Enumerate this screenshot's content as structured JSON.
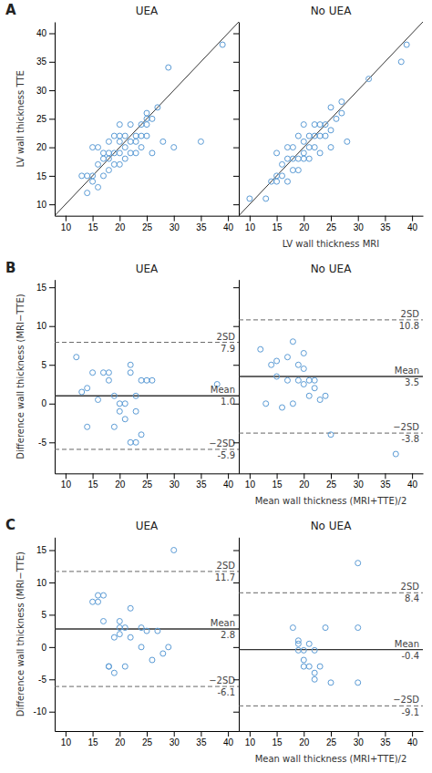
{
  "chart_data": [
    {
      "type": "scatter",
      "title": "UEA",
      "ylabel": "LV wall thickness TTE",
      "annotations": [
        {
          "text": "A"
        }
      ],
      "color": "#5B9BD5",
      "xlim": [
        8,
        42
      ],
      "ylim": [
        8,
        42
      ],
      "xticks": [
        10,
        15,
        20,
        25,
        30,
        35,
        40
      ],
      "yticks": [
        10,
        15,
        20,
        25,
        30,
        35,
        40
      ],
      "x": [
        13,
        14,
        14,
        15,
        15,
        15,
        16,
        16,
        16,
        17,
        17,
        17,
        18,
        18,
        18,
        18,
        19,
        19,
        19,
        20,
        20,
        20,
        20,
        20,
        21,
        21,
        21,
        22,
        22,
        22,
        23,
        23,
        23,
        24,
        24,
        24,
        25,
        25,
        25,
        25,
        26,
        26,
        27,
        28,
        29,
        30,
        35,
        39
      ],
      "values": [
        15,
        12,
        15,
        15,
        14,
        20,
        13,
        17,
        20,
        15,
        18,
        19,
        16,
        18,
        19,
        21,
        17,
        19,
        22,
        17,
        19,
        21,
        22,
        24,
        18,
        20,
        22,
        19,
        21,
        24,
        19,
        21,
        22,
        20,
        22,
        24,
        22,
        24,
        25,
        26,
        25,
        19,
        27,
        21,
        34,
        20,
        21,
        38
      ],
      "reference_lines": [
        {
          "x": [
            8,
            42
          ],
          "y": [
            8,
            42
          ],
          "line_style": "solid"
        }
      ]
    },
    {
      "type": "scatter",
      "title": "No UEA",
      "xlabel": "LV wall thickness MRI",
      "tick_labels": "x",
      "color": "#5B9BD5",
      "xlim": [
        8,
        42
      ],
      "ylim": [
        8,
        42
      ],
      "xticks": [
        10,
        15,
        20,
        25,
        30,
        35,
        40
      ],
      "yticks": [
        10,
        15,
        20,
        25,
        30,
        35,
        40
      ],
      "x": [
        10,
        13,
        14,
        15,
        15,
        15,
        16,
        16,
        17,
        17,
        17,
        18,
        18,
        18,
        19,
        19,
        19,
        20,
        20,
        20,
        20,
        21,
        21,
        21,
        22,
        22,
        22,
        23,
        23,
        23,
        24,
        24,
        25,
        25,
        25,
        26,
        27,
        27,
        28,
        32,
        38,
        39
      ],
      "values": [
        11,
        11,
        14,
        14,
        15,
        19,
        15,
        17,
        14,
        18,
        20,
        16,
        18,
        20,
        16,
        18,
        22,
        18,
        19,
        21,
        24,
        18,
        20,
        22,
        20,
        22,
        24,
        19,
        22,
        24,
        22,
        24,
        20,
        23,
        27,
        25,
        26,
        28,
        21,
        32,
        35,
        38
      ],
      "reference_lines": [
        {
          "x": [
            8,
            42
          ],
          "y": [
            8,
            42
          ],
          "line_style": "solid"
        }
      ]
    },
    {
      "type": "scatter",
      "title": "UEA",
      "ylabel": "Difference wall thickness (MRI−TTE)",
      "annotations": [
        {
          "text": "B"
        }
      ],
      "color": "#5B9BD5",
      "xlim": [
        8,
        42
      ],
      "ylim": [
        -9,
        16
      ],
      "xticks": [
        10,
        15,
        20,
        25,
        30,
        35,
        40
      ],
      "yticks": [
        -5,
        0,
        5,
        10,
        15
      ],
      "x": [
        12,
        13,
        14,
        14,
        15,
        16,
        17,
        18,
        18,
        19,
        19,
        20,
        20,
        21,
        21,
        22,
        22,
        22,
        23,
        23,
        23,
        24,
        24,
        25,
        26,
        38
      ],
      "values": [
        6,
        1.5,
        -3,
        2,
        4,
        0.5,
        4,
        3,
        4,
        -3,
        1,
        0,
        -1,
        0,
        -2,
        4,
        5,
        -5,
        -1,
        -5,
        1,
        3,
        -4,
        3,
        3,
        2.5
      ],
      "reference_lines": [
        {
          "y": 1.0,
          "line_style": "solid",
          "label": "Mean",
          "value_label": "1.0"
        },
        {
          "y": 7.9,
          "line_style": "dashed",
          "label": "2SD",
          "value_label": "7.9"
        },
        {
          "y": -5.9,
          "line_style": "dashed",
          "label": "−2SD",
          "value_label": "-5.9"
        }
      ]
    },
    {
      "type": "scatter",
      "title": "No UEA",
      "xlabel": "Mean wall thickness (MRI+TTE)/2",
      "tick_labels": "x",
      "color": "#5B9BD5",
      "xlim": [
        8,
        42
      ],
      "ylim": [
        -9,
        16
      ],
      "xticks": [
        10,
        15,
        20,
        25,
        30,
        35,
        40
      ],
      "yticks": [
        -5,
        0,
        5,
        10,
        15
      ],
      "x": [
        12,
        13,
        14,
        15,
        15,
        16,
        17,
        17,
        18,
        18,
        19,
        19,
        20,
        20,
        20,
        21,
        21,
        22,
        22,
        23,
        24,
        25,
        37
      ],
      "values": [
        7,
        0,
        5,
        3.5,
        5.5,
        -0.5,
        3,
        6,
        0,
        8,
        3,
        5,
        2.5,
        4.5,
        6.5,
        1,
        3,
        2,
        3,
        0.5,
        1,
        -4,
        -6.5
      ],
      "reference_lines": [
        {
          "y": 3.5,
          "line_style": "solid",
          "label": "Mean",
          "value_label": "3.5"
        },
        {
          "y": 10.8,
          "line_style": "dashed",
          "label": "2SD",
          "value_label": "10.8"
        },
        {
          "y": -3.8,
          "line_style": "dashed",
          "label": "−2SD",
          "value_label": "-3.8"
        }
      ]
    },
    {
      "type": "scatter",
      "title": "UEA",
      "ylabel": "Difference wall thickness (MRI−TTE)",
      "annotations": [
        {
          "text": "C"
        }
      ],
      "color": "#5B9BD5",
      "xlim": [
        8,
        42
      ],
      "ylim": [
        -13,
        17
      ],
      "xticks": [
        10,
        15,
        20,
        25,
        30,
        35,
        40
      ],
      "yticks": [
        -10,
        -5,
        0,
        5,
        10,
        15
      ],
      "x": [
        15,
        16,
        16,
        17,
        17,
        18,
        18,
        19,
        19,
        20,
        20,
        20,
        21,
        21,
        22,
        22,
        24,
        24,
        25,
        26,
        27,
        28,
        29,
        30
      ],
      "values": [
        7,
        7,
        8,
        4,
        8,
        -3,
        -3,
        -4,
        1.5,
        2,
        4,
        3,
        -3,
        3,
        1.5,
        6,
        0,
        3,
        2.5,
        -2,
        2.5,
        -1,
        0,
        15
      ],
      "reference_lines": [
        {
          "y": 2.8,
          "line_style": "solid",
          "label": "Mean",
          "value_label": "2.8"
        },
        {
          "y": 11.7,
          "line_style": "dashed",
          "label": "2SD",
          "value_label": "11.7"
        },
        {
          "y": -6.1,
          "line_style": "dashed",
          "label": "−2SD",
          "value_label": "-6.1"
        }
      ]
    },
    {
      "type": "scatter",
      "title": "No UEA",
      "xlabel": "Mean wall thickness (MRI+TTE)/2",
      "tick_labels": "x",
      "color": "#5B9BD5",
      "xlim": [
        8,
        42
      ],
      "ylim": [
        -13,
        17
      ],
      "xticks": [
        10,
        15,
        20,
        25,
        30,
        35,
        40
      ],
      "yticks": [
        -10,
        -5,
        0,
        5,
        10,
        15
      ],
      "x": [
        18,
        19,
        19,
        19,
        20,
        20,
        20,
        21,
        21,
        22,
        22,
        22,
        23,
        24,
        25,
        30,
        30,
        30
      ],
      "values": [
        3,
        1,
        0.5,
        -0.5,
        -2,
        -3,
        -0.5,
        0.5,
        -3,
        -0.5,
        -4,
        -5,
        -3,
        3,
        -5.5,
        13,
        -5.5,
        3
      ],
      "reference_lines": [
        {
          "y": -0.4,
          "line_style": "solid",
          "label": "Mean",
          "value_label": "-0.4"
        },
        {
          "y": 8.4,
          "line_style": "dashed",
          "label": "2SD",
          "value_label": "8.4"
        },
        {
          "y": -9.1,
          "line_style": "dashed",
          "label": "−2SD",
          "value_label": "-9.1"
        }
      ]
    }
  ]
}
